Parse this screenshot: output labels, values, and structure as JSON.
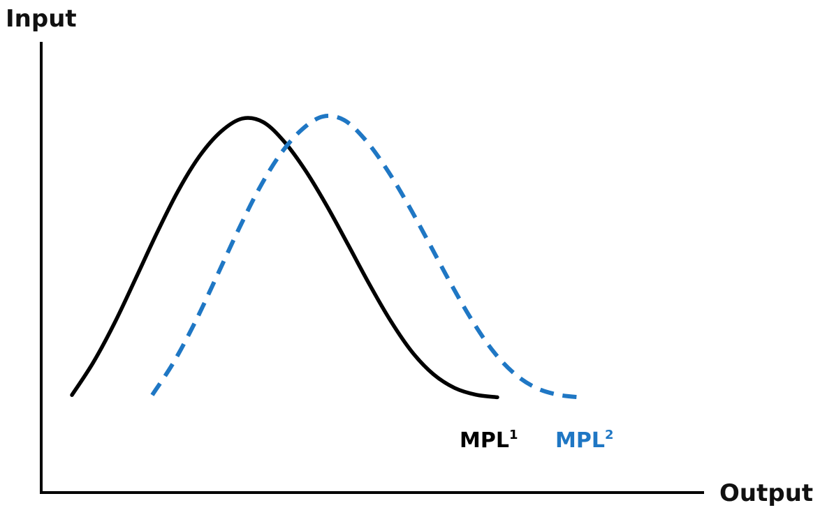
{
  "chart_data": {
    "type": "line",
    "xlabel": "Output",
    "ylabel": "Input",
    "grid": false,
    "legend": "none",
    "series": [
      {
        "name": "MPL",
        "superscript": "1",
        "color": "#000000",
        "line_style": "solid",
        "x": [
          0.0,
          0.05,
          0.1,
          0.15,
          0.2,
          0.25,
          0.3,
          0.35,
          0.4,
          0.45,
          0.5,
          0.55,
          0.6,
          0.65,
          0.7,
          0.75,
          0.8,
          0.85,
          0.9,
          0.95,
          1.0
        ],
        "y": [
          0.012,
          0.128,
          0.269,
          0.429,
          0.592,
          0.743,
          0.866,
          0.953,
          1.0,
          0.987,
          0.916,
          0.812,
          0.686,
          0.547,
          0.406,
          0.275,
          0.165,
          0.086,
          0.037,
          0.013,
          0.004
        ]
      },
      {
        "name": "MPL",
        "superscript": "2",
        "color": "#1f77c4",
        "line_style": "dashed",
        "x": [
          0.0,
          0.05,
          0.1,
          0.15,
          0.2,
          0.25,
          0.3,
          0.35,
          0.4,
          0.45,
          0.5,
          0.55,
          0.6,
          0.65,
          0.7,
          0.75,
          0.8,
          0.85,
          0.9,
          0.95,
          1.0
        ],
        "y": [
          0.012,
          0.128,
          0.269,
          0.429,
          0.592,
          0.743,
          0.866,
          0.953,
          1.0,
          0.987,
          0.916,
          0.812,
          0.686,
          0.547,
          0.406,
          0.275,
          0.165,
          0.086,
          0.037,
          0.013,
          0.004
        ]
      }
    ]
  }
}
